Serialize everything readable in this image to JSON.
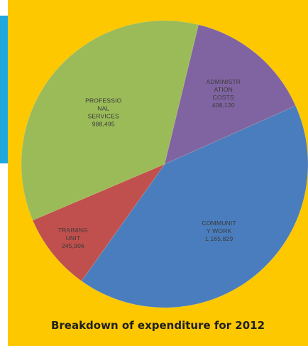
{
  "colors": {
    "panel_background": "#fdc800",
    "side_bar": "#1fa8e0",
    "label_text": "#3a3a3a"
  },
  "caption": "Breakdown of expenditure for 2012",
  "chart_data": {
    "type": "pie",
    "title": "Breakdown of expenditure for 2012",
    "start_angle_deg": -24,
    "direction": "clockwise",
    "slices": [
      {
        "label": "COMMUNITY WORK",
        "value": 1165829,
        "value_text": "1,165,829",
        "label_lines": [
          "COMMUNIT",
          "Y WORK",
          "1,165,829"
        ],
        "color": "#4a7dbd"
      },
      {
        "label": "TRAINING UNIT",
        "value": 245906,
        "value_text": "245,906",
        "label_lines": [
          "TRAINING",
          "UNIT",
          "245,906"
        ],
        "color": "#c0504d"
      },
      {
        "label": "PROFESSIONAL SERVICES",
        "value": 988495,
        "value_text": "988,495",
        "label_lines": [
          "PROFESSIO",
          "NAL",
          "SERVICES",
          "988,495"
        ],
        "color": "#9bbb59"
      },
      {
        "label": "ADMINISTRATION COSTS",
        "value": 408120,
        "value_text": "408,120",
        "label_lines": [
          "ADMINISTR",
          "ATION",
          "COSTS",
          "408,120"
        ],
        "color": "#8064a2"
      }
    ]
  }
}
